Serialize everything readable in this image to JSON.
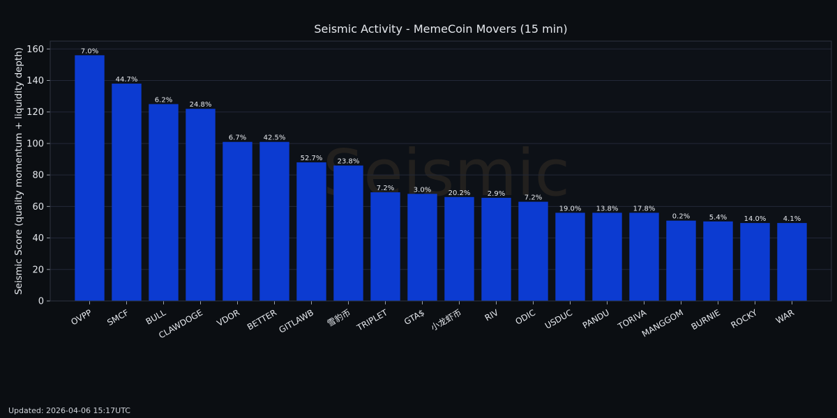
{
  "chart_data": {
    "type": "bar",
    "title": "Seismic Activity - MemeCoin Movers (15 min)",
    "xlabel": "",
    "ylabel": "Seismic Score (quality momentum + liquidity depth)",
    "ylim": [
      0,
      165
    ],
    "yticks": [
      0,
      20,
      40,
      60,
      80,
      100,
      120,
      140,
      160
    ],
    "grid": true,
    "categories": [
      "OVPP",
      "SMCF",
      "BULL",
      "CLAWDOGE",
      "VDOR",
      "BETTER",
      "GITLAWB",
      "雪豹币",
      "TRIPLET",
      "GTA$",
      "小龙虾币",
      "RIV",
      "ODIC",
      "USDUC",
      "PANDU",
      "TORIVA",
      "MANGGOM",
      "BURNIE",
      "ROCKY",
      "WAR"
    ],
    "values": [
      156,
      138,
      125,
      122,
      101,
      101,
      88,
      86,
      69,
      68,
      66,
      65.5,
      63,
      56,
      56,
      56,
      51,
      50.5,
      49.5,
      49.5
    ],
    "data_labels": [
      "7.0%",
      "44.7%",
      "6.2%",
      "24.8%",
      "6.7%",
      "42.5%",
      "52.7%",
      "23.8%",
      "7.2%",
      "3.0%",
      "20.2%",
      "2.9%",
      "7.2%",
      "19.0%",
      "13.8%",
      "17.8%",
      "0.2%",
      "5.4%",
      "14.0%",
      "4.1%"
    ],
    "bar_color": "#0c3bd1",
    "watermark": "Seismic"
  },
  "footer": {
    "updated": "Updated: 2026-04-06 15:17UTC"
  },
  "colors": {
    "background": "#0b0e12",
    "plot_background": "#0d1117",
    "grid": "#232838",
    "text": "#e6e9ee"
  }
}
